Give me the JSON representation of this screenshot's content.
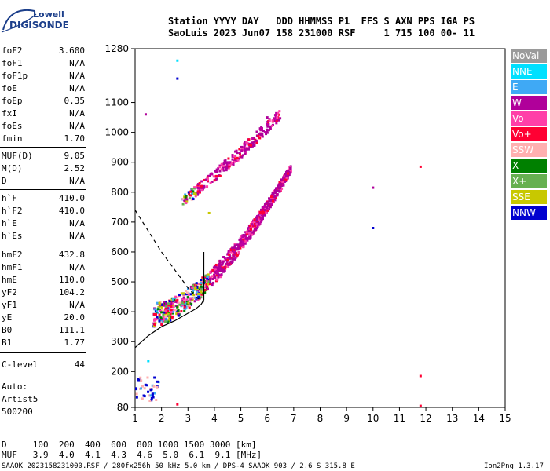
{
  "logo": {
    "line1": "Lowell",
    "line2": "DIGISONDE"
  },
  "header": {
    "line1": "Station YYYY DAY   DDD HHMMSS P1  FFS S AXN PPS IGA PS",
    "line2": "SaoLuis 2023 Jun07 158 231000 RSF     1 715 100 00- 11"
  },
  "params": [
    {
      "k": "foF2",
      "v": "3.600"
    },
    {
      "k": "foF1",
      "v": "N/A"
    },
    {
      "k": "foF1p",
      "v": "N/A"
    },
    {
      "k": "foE",
      "v": "N/A"
    },
    {
      "k": "foEp",
      "v": "0.35"
    },
    {
      "k": "fxI",
      "v": "N/A"
    },
    {
      "k": "foEs",
      "v": "N/A"
    },
    {
      "k": "fmin",
      "v": "1.70"
    },
    {
      "k": "MUF(D)",
      "v": "9.05"
    },
    {
      "k": "M(D)",
      "v": "2.52"
    },
    {
      "k": "D",
      "v": "N/A"
    },
    {
      "k": "h`F",
      "v": "410.0"
    },
    {
      "k": "h`F2",
      "v": "410.0"
    },
    {
      "k": "h`E",
      "v": "N/A"
    },
    {
      "k": "h`Es",
      "v": "N/A"
    },
    {
      "k": "hmF2",
      "v": "432.8"
    },
    {
      "k": "hmF1",
      "v": "N/A"
    },
    {
      "k": "hmE",
      "v": "110.0"
    },
    {
      "k": "yF2",
      "v": "104.2"
    },
    {
      "k": "yF1",
      "v": "N/A"
    },
    {
      "k": "yE",
      "v": "20.0"
    },
    {
      "k": "B0",
      "v": "111.1"
    },
    {
      "k": "B1",
      "v": "1.77"
    },
    {
      "k": "C-level",
      "v": "44"
    }
  ],
  "autoscaling": {
    "line1": "Auto:",
    "line2": "Artist5",
    "line3": "500200"
  },
  "legend": [
    {
      "label": "NoVal",
      "color": "#9a9a9a"
    },
    {
      "label": "NNE",
      "color": "#00e0ff"
    },
    {
      "label": "E",
      "color": "#3fa9f5"
    },
    {
      "label": "W",
      "color": "#b0009a"
    },
    {
      "label": "Vo-",
      "color": "#ff3fa8"
    },
    {
      "label": "Vo+",
      "color": "#ff0033"
    },
    {
      "label": "SSW",
      "color": "#ffb0b0"
    },
    {
      "label": "X-",
      "color": "#008000"
    },
    {
      "label": "X+",
      "color": "#66b050"
    },
    {
      "label": "SSE",
      "color": "#c8c800"
    },
    {
      "label": "NNW",
      "color": "#0000d0"
    }
  ],
  "chart_data": {
    "type": "scatter",
    "xlim": [
      1,
      15
    ],
    "ylim": [
      80,
      1280
    ],
    "x_ticks": [
      "1",
      "2",
      "3",
      "4",
      "5",
      "6",
      "7",
      "8",
      "9",
      "10",
      "11",
      "12",
      "13",
      "14",
      "15"
    ],
    "y_ticks": [
      "80",
      "200",
      "300",
      "400",
      "500",
      "600",
      "700",
      "800",
      "900",
      "1000",
      "1100",
      "1280"
    ],
    "x_tick_values": [
      1,
      2,
      3,
      4,
      5,
      6,
      7,
      8,
      9,
      10,
      11,
      12,
      13,
      14,
      15
    ],
    "y_tick_values": [
      80,
      200,
      300,
      400,
      500,
      600,
      700,
      800,
      900,
      1000,
      1100,
      1280
    ],
    "traces": [
      {
        "name": "F2 first hop",
        "x_range": [
          1.7,
          6.9
        ],
        "base_height": [
          390,
          880
        ]
      },
      {
        "name": "F2 second hop",
        "x_range": [
          2.8,
          6.5
        ],
        "base_height": [
          770,
          1060
        ]
      }
    ],
    "profile_solid": [
      [
        1.0,
        280
      ],
      [
        1.5,
        320
      ],
      [
        2.0,
        350
      ],
      [
        2.5,
        370
      ],
      [
        3.0,
        395
      ],
      [
        3.3,
        410
      ],
      [
        3.5,
        425
      ],
      [
        3.6,
        440
      ],
      [
        3.6,
        600
      ]
    ],
    "profile_dashed": [
      [
        1.0,
        740
      ],
      [
        1.5,
        670
      ],
      [
        2.0,
        600
      ],
      [
        2.5,
        540
      ],
      [
        3.0,
        480
      ],
      [
        3.3,
        450
      ],
      [
        3.6,
        432
      ]
    ],
    "grid": false
  },
  "bottom": {
    "d_line": "D     100  200  400  600  800 1000 1500 3000 [km]",
    "muf_line": "MUF   3.9  4.0  4.1  4.3  4.6  5.0  6.1  9.1 [MHz]",
    "footer_left": "SAAOK_2023158231000.RSF / 280fx256h 50 kHz 5.0 km / DPS-4 SAAOK 903 / 2.6 S 315.8 E",
    "footer_right": "Ion2Png 1.3.17"
  }
}
